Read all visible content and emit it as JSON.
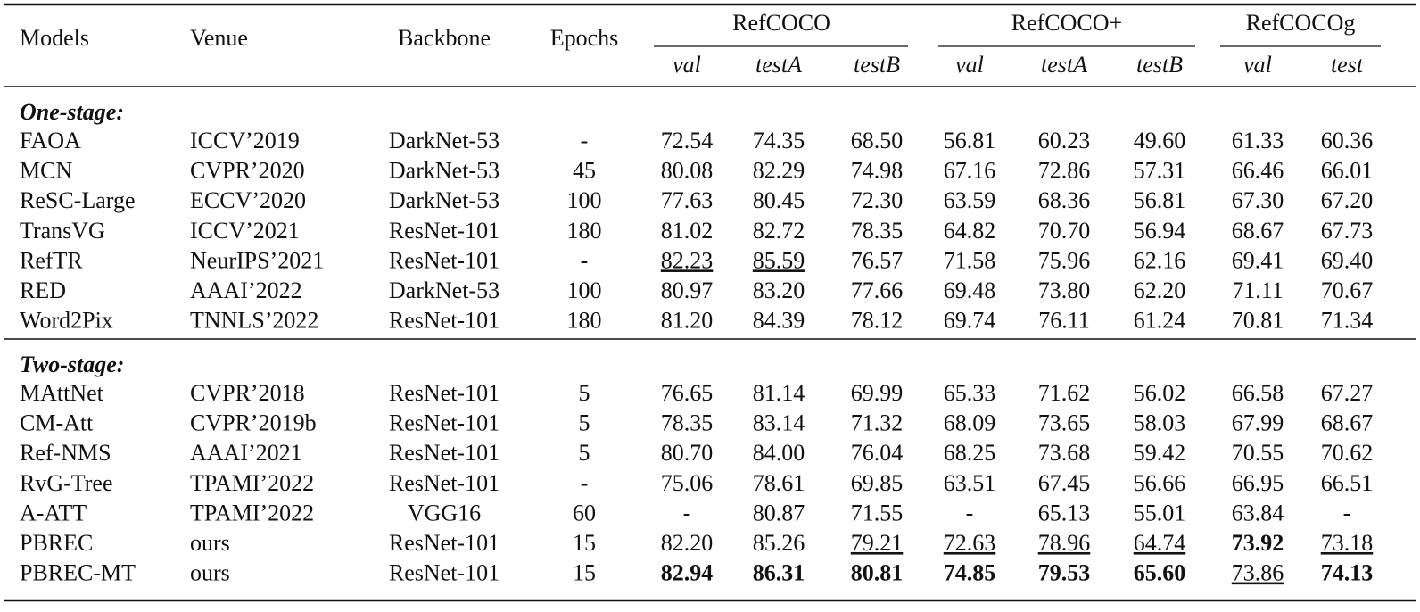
{
  "table": {
    "columns": [
      "Models",
      "Venue",
      "Backbone",
      "Epochs"
    ],
    "groups": [
      {
        "name": "RefCOCO",
        "splits": [
          "val",
          "testA",
          "testB"
        ]
      },
      {
        "name": "RefCOCO+",
        "splits": [
          "val",
          "testA",
          "testB"
        ]
      },
      {
        "name": "RefCOCOg",
        "splits": [
          "val",
          "test"
        ]
      }
    ],
    "sections": [
      {
        "title": "One-stage:",
        "rows": [
          [
            "FAOA",
            "ICCV’2019",
            "DarkNet-53",
            "-",
            "72.54",
            "74.35",
            "68.50",
            "56.81",
            "60.23",
            "49.60",
            "61.33",
            "60.36"
          ],
          [
            "MCN",
            "CVPR’2020",
            "DarkNet-53",
            "45",
            "80.08",
            "82.29",
            "74.98",
            "67.16",
            "72.86",
            "57.31",
            "66.46",
            "66.01"
          ],
          [
            "ReSC-Large",
            "ECCV’2020",
            "DarkNet-53",
            "100",
            "77.63",
            "80.45",
            "72.30",
            "63.59",
            "68.36",
            "56.81",
            "67.30",
            "67.20"
          ],
          [
            "TransVG",
            "ICCV’2021",
            "ResNet-101",
            "180",
            "81.02",
            "82.72",
            "78.35",
            "64.82",
            "70.70",
            "56.94",
            "68.67",
            "67.73"
          ],
          [
            "RefTR",
            "NeurIPS’2021",
            "ResNet-101",
            "-",
            "82.23",
            "85.59",
            "76.57",
            "71.58",
            "75.96",
            "62.16",
            "69.41",
            "69.40"
          ],
          [
            "RED",
            "AAAI’2022",
            "DarkNet-53",
            "100",
            "80.97",
            "83.20",
            "77.66",
            "69.48",
            "73.80",
            "62.20",
            "71.11",
            "70.67"
          ],
          [
            "Word2Pix",
            "TNNLS’2022",
            "ResNet-101",
            "180",
            "81.20",
            "84.39",
            "78.12",
            "69.74",
            "76.11",
            "61.24",
            "70.81",
            "71.34"
          ]
        ]
      },
      {
        "title": "Two-stage:",
        "rows": [
          [
            "MAttNet",
            "CVPR’2018",
            "ResNet-101",
            "5",
            "76.65",
            "81.14",
            "69.99",
            "65.33",
            "71.62",
            "56.02",
            "66.58",
            "67.27"
          ],
          [
            "CM-Att",
            "CVPR’2019b",
            "ResNet-101",
            "5",
            "78.35",
            "83.14",
            "71.32",
            "68.09",
            "73.65",
            "58.03",
            "67.99",
            "68.67"
          ],
          [
            "Ref-NMS",
            "AAAI’2021",
            "ResNet-101",
            "5",
            "80.70",
            "84.00",
            "76.04",
            "68.25",
            "73.68",
            "59.42",
            "70.55",
            "70.62"
          ],
          [
            "RvG-Tree",
            "TPAMI’2022",
            "ResNet-101",
            "-",
            "75.06",
            "78.61",
            "69.85",
            "63.51",
            "67.45",
            "56.66",
            "66.95",
            "66.51"
          ],
          [
            "A-ATT",
            "TPAMI’2022",
            "VGG16",
            "60",
            "-",
            "80.87",
            "71.55",
            "-",
            "65.13",
            "55.01",
            "63.84",
            "-"
          ],
          [
            "PBREC",
            "ours",
            "ResNet-101",
            "15",
            "82.20",
            "85.26",
            "79.21",
            "72.63",
            "78.96",
            "64.74",
            "73.92",
            "73.18"
          ],
          [
            "PBREC-MT",
            "ours",
            "ResNet-101",
            "15",
            "82.94",
            "86.31",
            "80.81",
            "74.85",
            "79.53",
            "65.60",
            "73.86",
            "74.13"
          ]
        ]
      }
    ]
  }
}
